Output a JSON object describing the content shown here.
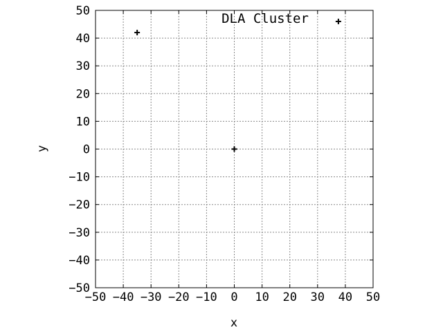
{
  "chart_data": {
    "type": "scatter",
    "title": "DLA Cluster",
    "xlabel": "x",
    "ylabel": "y",
    "xlim": [
      -50,
      50
    ],
    "ylim": [
      -50,
      50
    ],
    "xticks": [
      -50,
      -40,
      -30,
      -20,
      -10,
      0,
      10,
      20,
      30,
      40,
      50
    ],
    "yticks": [
      -50,
      -40,
      -30,
      -20,
      -10,
      0,
      10,
      20,
      30,
      40,
      50
    ],
    "xtick_labels": [
      "−50",
      "−40",
      "−30",
      "−20",
      "−10",
      "0",
      "10",
      "20",
      "30",
      "40",
      "50"
    ],
    "ytick_labels": [
      "−50",
      "−40",
      "−30",
      "−20",
      "−10",
      "0",
      "10",
      "20",
      "30",
      "40",
      "50"
    ],
    "grid": true,
    "marker": "+",
    "marker_color": "#000000",
    "points": [
      {
        "x": -35,
        "y": 42
      },
      {
        "x": 0,
        "y": 0
      },
      {
        "x": 37.5,
        "y": 46
      }
    ]
  }
}
